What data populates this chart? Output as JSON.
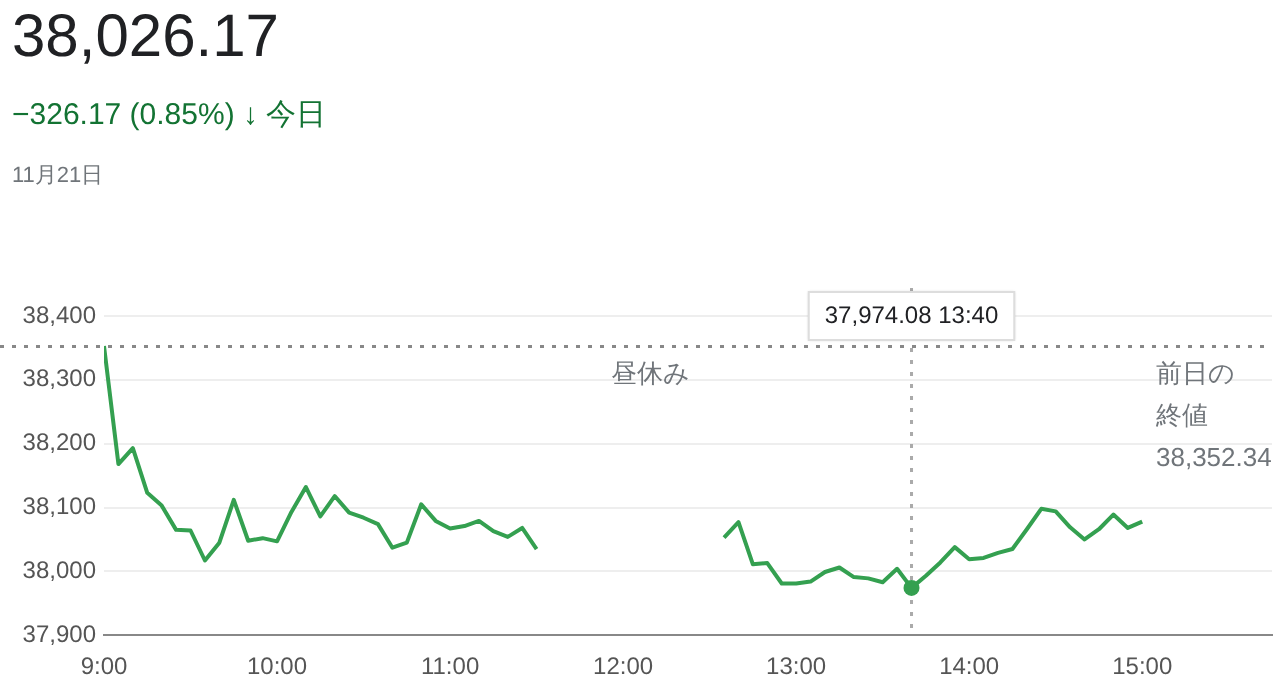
{
  "chart_data": {
    "type": "line",
    "title": "38,026.17",
    "subtitle": "−326.17 (0.85%) ↓ 今日",
    "annotations": [
      "11月21日",
      {
        "text": "昼休み",
        "x": 12,
        "y": 38352.34
      },
      "37,974.08 13:40"
    ],
    "x": [
      9,
      9.0833,
      9.1667,
      9.25,
      9.3333,
      9.4167,
      9.5,
      9.5833,
      9.6667,
      9.75,
      9.8333,
      9.9167,
      10,
      10.0833,
      10.1667,
      10.25,
      10.3333,
      10.4167,
      10.5,
      10.5833,
      10.6667,
      10.75,
      10.8333,
      10.9167,
      11,
      11.0833,
      11.1667,
      11.25,
      11.3333,
      11.4167,
      11.5,
      12,
      12.5833,
      12.6667,
      12.75,
      12.8333,
      12.9167,
      13,
      13.0833,
      13.1667,
      13.25,
      13.3333,
      13.4167,
      13.5,
      13.5833,
      13.6667,
      13.75,
      13.8333,
      13.9167,
      14,
      14.0833,
      14.1667,
      14.25,
      14.3333,
      14.4167,
      14.5,
      14.5833,
      14.6667,
      14.75,
      14.8333,
      14.9167,
      15
    ],
    "series": [
      {
        "color": "#34a050",
        "values": [
          38353,
          38168,
          38193,
          38123,
          38103,
          38065,
          38064,
          38017,
          38045,
          38112,
          38048,
          38052,
          38047,
          38093,
          38132,
          38086,
          38118,
          38092,
          38084,
          38074,
          38037,
          38045,
          38105,
          38079,
          38067,
          38071,
          38079,
          38063,
          38054,
          38068,
          38035,
          null,
          38053,
          38077,
          38011,
          38013,
          37981,
          37981,
          37984,
          37999,
          38006,
          37991,
          37989,
          37983,
          38004,
          37974.08,
          37993,
          38014,
          38038,
          38019,
          38021,
          38029,
          38035,
          38066,
          38098,
          38094,
          38069,
          38050,
          38066,
          38089,
          38068,
          38078
        ]
      }
    ],
    "xlim": [
      9,
      15.75
    ],
    "xticks": [
      {
        "value": 9,
        "label": "9:00"
      },
      {
        "value": 10,
        "label": "10:00"
      },
      {
        "value": 11,
        "label": "11:00"
      },
      {
        "value": 12,
        "label": "12:00"
      },
      {
        "value": 13,
        "label": "13:00"
      },
      {
        "value": 14,
        "label": "14:00"
      },
      {
        "value": 15,
        "label": "15:00"
      }
    ],
    "ylim": [
      37900,
      38400
    ],
    "yticks": [
      {
        "value": 37900,
        "label": "37,900"
      },
      {
        "value": 38000,
        "label": "38,000"
      },
      {
        "value": 38100,
        "label": "38,100"
      },
      {
        "value": 38200,
        "label": "38,200"
      },
      {
        "value": 38300,
        "label": "38,300"
      },
      {
        "value": 38400,
        "label": "38,400"
      }
    ],
    "ref_lines": [
      {
        "axis": "y",
        "value": 38352.34,
        "label": "前日の終値 38,352.34",
        "line_style": "dotted",
        "color": "#888888"
      },
      {
        "axis": "x",
        "value": 13.6667,
        "line_style": "dotted",
        "color": "#aaaaaa"
      }
    ],
    "grid": "y",
    "legend": false,
    "marker": "none",
    "line_style": "solid"
  }
}
